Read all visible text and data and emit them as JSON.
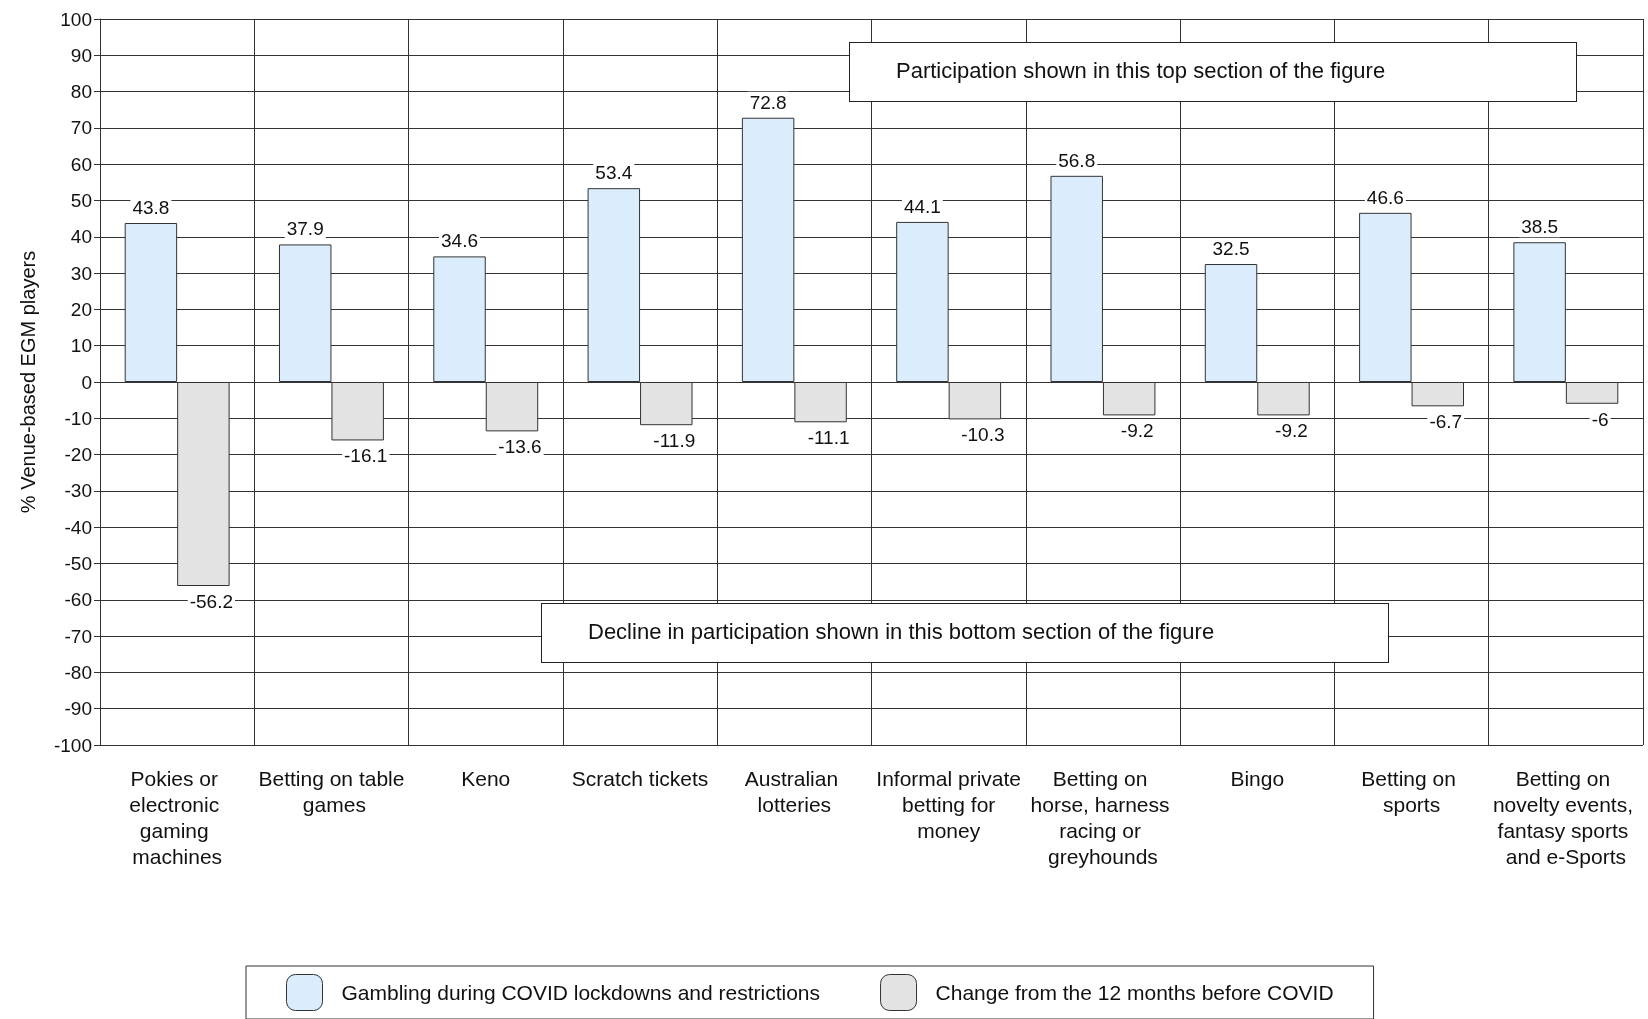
{
  "chart_data": {
    "type": "bar",
    "categories": [
      "Pokies or electronic gaming machines",
      "Betting on table games",
      "Keno",
      "Scratch tickets",
      "Australian lotteries",
      "Informal private betting for money",
      "Betting on horse, harness racing or greyhounds",
      "Bingo",
      "Betting on sports",
      "Betting on novelty events, fantasy sports and e-Sports"
    ],
    "series": [
      {
        "name": "Gambling during COVID lockdowns and restrictions",
        "color": "#dbedfd",
        "values": [
          43.8,
          37.9,
          34.6,
          53.4,
          72.8,
          44.1,
          56.8,
          32.5,
          46.6,
          38.5
        ]
      },
      {
        "name": "Change from the 12 months before COVID",
        "color": "#e3e3e3",
        "values": [
          -56.2,
          -16.1,
          -13.6,
          -11.9,
          -11.1,
          -10.3,
          -9.2,
          -9.2,
          -6.7,
          -6
        ]
      }
    ],
    "ylabel": "% Venue-based EGM players",
    "ylim": [
      -100,
      100
    ],
    "yticks": [
      -100,
      -90,
      -80,
      -70,
      -60,
      -50,
      -40,
      -30,
      -20,
      -10,
      0,
      10,
      20,
      30,
      40,
      50,
      60,
      70,
      80,
      90,
      100
    ],
    "annotations": [
      "Participation shown in this top section of the figure",
      "Decline in participation shown in this bottom section of the figure"
    ],
    "data_labels": true,
    "grid": true,
    "legend": "bottom"
  }
}
